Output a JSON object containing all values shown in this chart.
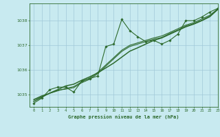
{
  "title": "Graphe pression niveau de la mer (hPa)",
  "bg_color": "#c8eaf0",
  "grid_color": "#a0c8d8",
  "line_color": "#2d6a2d",
  "xlim": [
    -0.5,
    23
  ],
  "ylim": [
    1034.5,
    1038.7
  ],
  "yticks": [
    1035,
    1036,
    1037,
    1038
  ],
  "hours": [
    0,
    1,
    2,
    3,
    4,
    5,
    6,
    7,
    8,
    9,
    10,
    11,
    12,
    13,
    14,
    15,
    16,
    17,
    18,
    19,
    20,
    21,
    22,
    23
  ],
  "pressure_main": [
    1034.65,
    1034.85,
    1035.2,
    1035.3,
    1035.3,
    1035.1,
    1035.55,
    1035.65,
    1035.75,
    1036.95,
    1037.05,
    1038.05,
    1037.6,
    1037.35,
    1037.15,
    1037.2,
    1037.05,
    1037.2,
    1037.45,
    1038.0,
    1038.0,
    1038.15,
    1038.35,
    1038.5
  ],
  "pressure_smooth1": [
    1034.8,
    1034.95,
    1035.05,
    1035.18,
    1035.22,
    1035.28,
    1035.48,
    1035.62,
    1035.85,
    1036.15,
    1036.45,
    1036.75,
    1036.95,
    1037.05,
    1037.15,
    1037.25,
    1037.32,
    1037.48,
    1037.62,
    1037.78,
    1037.88,
    1038.02,
    1038.18,
    1038.45
  ],
  "pressure_smooth2": [
    1034.78,
    1034.92,
    1035.05,
    1035.15,
    1035.25,
    1035.32,
    1035.52,
    1035.67,
    1035.9,
    1036.2,
    1036.5,
    1036.8,
    1037.0,
    1037.1,
    1037.2,
    1037.3,
    1037.38,
    1037.52,
    1037.67,
    1037.82,
    1037.92,
    1038.07,
    1038.22,
    1038.48
  ],
  "pressure_linear": [
    1034.72,
    1034.89,
    1035.06,
    1035.2,
    1035.35,
    1035.42,
    1035.58,
    1035.72,
    1035.88,
    1036.08,
    1036.28,
    1036.52,
    1036.76,
    1036.9,
    1037.05,
    1037.2,
    1037.3,
    1037.45,
    1037.6,
    1037.75,
    1037.86,
    1038.0,
    1038.16,
    1038.46
  ]
}
